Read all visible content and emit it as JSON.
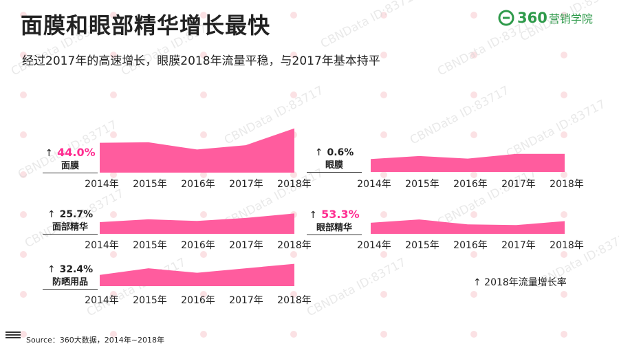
{
  "header": {
    "title": "面膜和眼部精华增长最快",
    "subtitle": "经过2017年的高速增长，眼膜2018年流量平稳，与2017年基本持平"
  },
  "logo": {
    "brand": "360",
    "text": "营销学院",
    "color": "#2e9a4a"
  },
  "watermark": {
    "text": "CBNData ID:83717"
  },
  "legend": {
    "text": "↑ 2018年流量增长率"
  },
  "source": {
    "text": "Source：360大数据，2014年~2018年"
  },
  "colors": {
    "area": "#ff5c9e",
    "highlight": "#ff2f92",
    "dot": "#fbe1e4"
  },
  "chart_data": [
    {
      "type": "area",
      "name": "面膜",
      "growth": "44.0%",
      "highlight": true,
      "x": [
        "2014年",
        "2015年",
        "2016年",
        "2017年",
        "2018年"
      ],
      "values": [
        0.62,
        0.63,
        0.48,
        0.57,
        0.92
      ]
    },
    {
      "type": "area",
      "name": "眼膜",
      "growth": "0.6%",
      "highlight": false,
      "x": [
        "2014年",
        "2015年",
        "2016年",
        "2017年",
        "2018年"
      ],
      "values": [
        0.55,
        0.68,
        0.57,
        0.77,
        0.77
      ]
    },
    {
      "type": "area",
      "name": "面部精华",
      "growth": "25.7%",
      "highlight": false,
      "x": [
        "2014年",
        "2015年",
        "2016年",
        "2017年",
        "2018年"
      ],
      "values": [
        0.5,
        0.62,
        0.55,
        0.68,
        0.87
      ]
    },
    {
      "type": "area",
      "name": "眼部精华",
      "growth": "53.3%",
      "highlight": true,
      "x": [
        "2014年",
        "2015年",
        "2016年",
        "2017年",
        "2018年"
      ],
      "values": [
        0.67,
        0.87,
        0.57,
        0.53,
        0.77
      ]
    },
    {
      "type": "area",
      "name": "防晒用品",
      "growth": "32.4%",
      "highlight": false,
      "x": [
        "2014年",
        "2015年",
        "2016年",
        "2017年",
        "2018年"
      ],
      "values": [
        0.45,
        0.72,
        0.54,
        0.72,
        0.9
      ]
    }
  ]
}
